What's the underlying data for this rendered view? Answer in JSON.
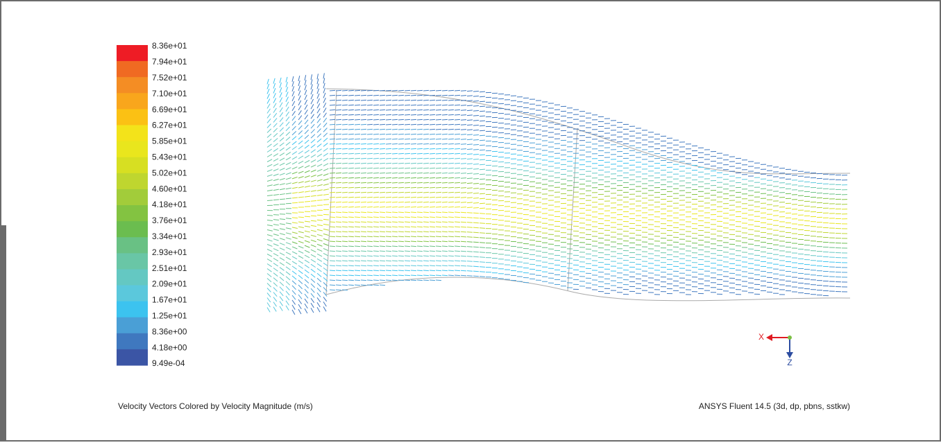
{
  "legend": {
    "labels": [
      "8.36e+01",
      "7.94e+01",
      "7.52e+01",
      "7.10e+01",
      "6.69e+01",
      "6.27e+01",
      "5.85e+01",
      "5.43e+01",
      "5.02e+01",
      "4.60e+01",
      "4.18e+01",
      "3.76e+01",
      "3.34e+01",
      "2.93e+01",
      "2.51e+01",
      "2.09e+01",
      "1.67e+01",
      "1.25e+01",
      "8.36e+00",
      "4.18e+00",
      "9.49e-04"
    ],
    "colors": [
      "#ee1c25",
      "#f06a22",
      "#f48d24",
      "#f9a61c",
      "#fbc114",
      "#f3e31a",
      "#e9e61d",
      "#d7df22",
      "#bfd62f",
      "#a2cc3a",
      "#83c341",
      "#6bbd4f",
      "#69c184",
      "#69c6a6",
      "#64c8c2",
      "#5bc8dc",
      "#3cc3ef",
      "#4a9fd6",
      "#3f78bf",
      "#3b55a5"
    ]
  },
  "triad": {
    "x": "X",
    "z": "Z"
  },
  "footer": {
    "left": "Velocity Vectors Colored by Velocity Magnitude (m/s)",
    "right": "ANSYS Fluent 14.5 (3d, dp, pbns, sstkw)"
  }
}
